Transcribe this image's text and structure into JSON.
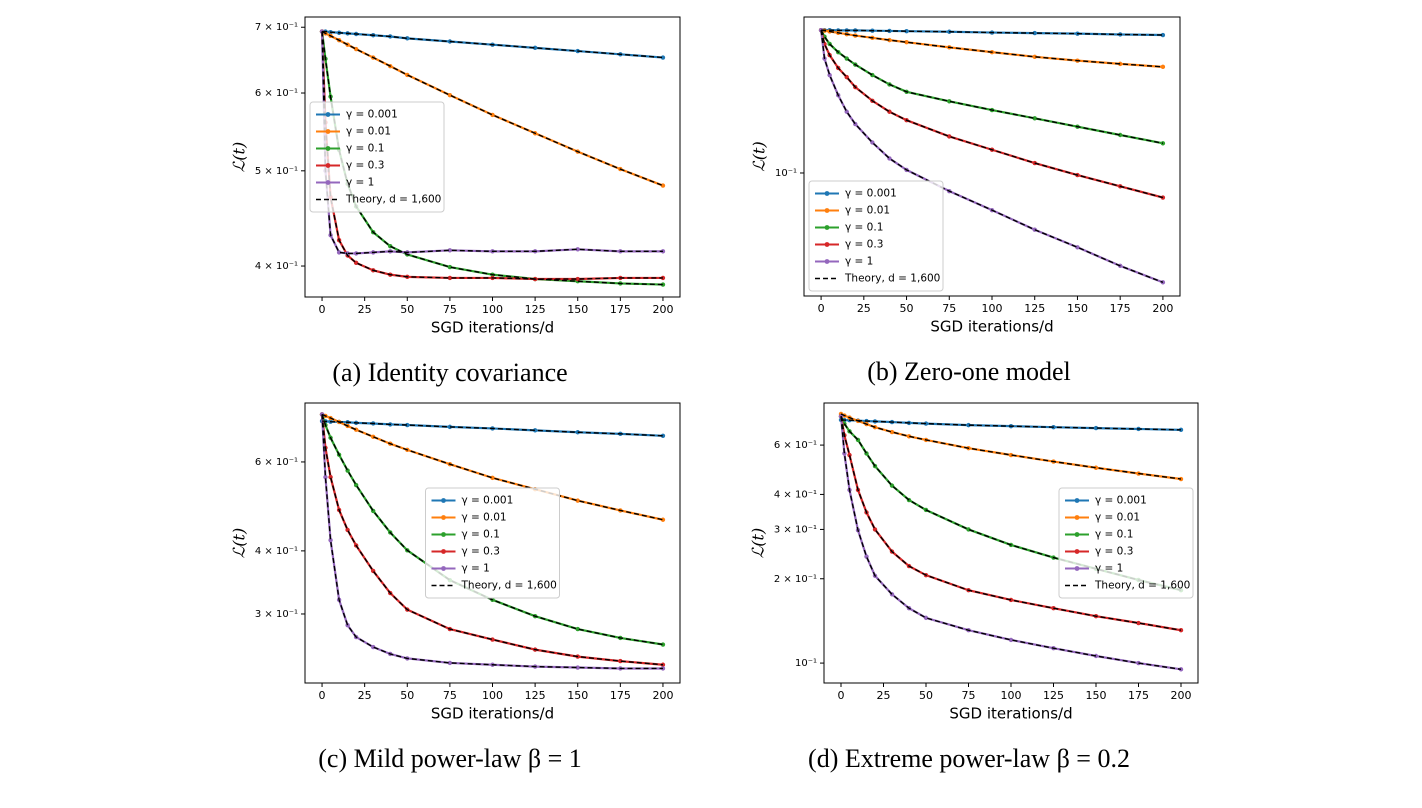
{
  "chart_data": [
    {
      "type": "line",
      "caption": "(a) Identity covariance",
      "x_label": "SGD iterations/d",
      "y_label": "ℒ(t)",
      "log_y": true,
      "legend_loc": "center left",
      "x": [
        0,
        2,
        5,
        10,
        15,
        20,
        30,
        40,
        50,
        75,
        100,
        125,
        150,
        175,
        200
      ],
      "xlim": [
        -10,
        210
      ],
      "xticks": [
        0,
        25,
        50,
        75,
        100,
        125,
        150,
        175,
        200
      ],
      "ylim": [
        0.372,
        0.717
      ],
      "yticks": [
        {
          "value": 0.4,
          "label": "4 × 10⁻¹"
        },
        {
          "value": 0.5,
          "label": "5 × 10⁻¹"
        },
        {
          "value": 0.6,
          "label": "6 × 10⁻¹"
        },
        {
          "value": 0.7,
          "label": "7 × 10⁻¹"
        }
      ],
      "series": [
        {
          "name": "γ = 0.001",
          "color": "#1f77b4",
          "values": [
            0.693,
            0.693,
            0.692,
            0.691,
            0.69,
            0.689,
            0.687,
            0.685,
            0.682,
            0.677,
            0.672,
            0.667,
            0.662,
            0.657,
            0.652
          ]
        },
        {
          "name": "γ = 0.01",
          "color": "#ff7f0e",
          "values": [
            0.693,
            0.69,
            0.686,
            0.679,
            0.672,
            0.665,
            0.652,
            0.639,
            0.626,
            0.597,
            0.57,
            0.546,
            0.523,
            0.502,
            0.483
          ]
        },
        {
          "name": "γ = 0.1",
          "color": "#2ca02c",
          "values": [
            0.693,
            0.65,
            0.595,
            0.525,
            0.485,
            0.46,
            0.433,
            0.419,
            0.411,
            0.399,
            0.392,
            0.388,
            0.386,
            0.384,
            0.383
          ]
        },
        {
          "name": "γ = 0.3",
          "color": "#d62728",
          "values": [
            0.693,
            0.56,
            0.47,
            0.425,
            0.41,
            0.403,
            0.396,
            0.392,
            0.39,
            0.389,
            0.389,
            0.388,
            0.388,
            0.389,
            0.389
          ]
        },
        {
          "name": "γ = 1",
          "color": "#9467bd",
          "values": [
            0.693,
            0.5,
            0.43,
            0.413,
            0.412,
            0.412,
            0.413,
            0.414,
            0.413,
            0.415,
            0.414,
            0.414,
            0.416,
            0.414,
            0.414
          ]
        }
      ],
      "theory": {
        "name": "Theory, d = 1,600",
        "color": "#000000",
        "dashed": true
      }
    },
    {
      "type": "line",
      "caption": "(b) Zero-one model",
      "x_label": "SGD iterations/d",
      "y_label": "ℒ(t)",
      "log_y": true,
      "legend_loc": "lower left",
      "x": [
        0,
        2,
        5,
        10,
        15,
        20,
        30,
        40,
        50,
        75,
        100,
        125,
        150,
        175,
        200
      ],
      "xlim": [
        -10,
        210
      ],
      "xticks": [
        0,
        25,
        50,
        75,
        100,
        125,
        150,
        175,
        200
      ],
      "ylim": [
        0.0307,
        0.447
      ],
      "yticks": [
        {
          "value": 0.1,
          "label": "10⁻¹"
        }
      ],
      "series": [
        {
          "name": "γ = 0.001",
          "color": "#1f77b4",
          "values": [
            0.394,
            0.394,
            0.394,
            0.393,
            0.393,
            0.393,
            0.392,
            0.391,
            0.39,
            0.388,
            0.385,
            0.383,
            0.381,
            0.378,
            0.376
          ]
        },
        {
          "name": "γ = 0.01",
          "color": "#ff7f0e",
          "values": [
            0.394,
            0.392,
            0.389,
            0.384,
            0.379,
            0.374,
            0.366,
            0.358,
            0.351,
            0.334,
            0.319,
            0.305,
            0.294,
            0.285,
            0.277
          ]
        },
        {
          "name": "γ = 0.1",
          "color": "#2ca02c",
          "values": [
            0.394,
            0.37,
            0.345,
            0.319,
            0.3,
            0.283,
            0.256,
            0.234,
            0.218,
            0.199,
            0.183,
            0.169,
            0.156,
            0.144,
            0.133
          ]
        },
        {
          "name": "γ = 0.3",
          "color": "#d62728",
          "values": [
            0.394,
            0.345,
            0.31,
            0.274,
            0.251,
            0.228,
            0.2,
            0.18,
            0.166,
            0.142,
            0.125,
            0.11,
            0.098,
            0.088,
            0.079
          ]
        },
        {
          "name": "γ = 1",
          "color": "#9467bd",
          "values": [
            0.394,
            0.3,
            0.256,
            0.211,
            0.18,
            0.16,
            0.134,
            0.115,
            0.103,
            0.084,
            0.07,
            0.058,
            0.049,
            0.041,
            0.035
          ]
        }
      ],
      "theory": {
        "name": "Theory, d = 1,600",
        "color": "#000000",
        "dashed": true
      }
    },
    {
      "type": "line",
      "caption": "(c) Mild power-law β = 1",
      "x_label": "SGD iterations/d",
      "y_label": "ℒ(t)",
      "log_y": true,
      "legend_loc": "center",
      "x": [
        0,
        2,
        5,
        10,
        15,
        20,
        30,
        40,
        50,
        75,
        100,
        125,
        150,
        175,
        200
      ],
      "xlim": [
        -10,
        210
      ],
      "xticks": [
        0,
        25,
        50,
        75,
        100,
        125,
        150,
        175,
        200
      ],
      "ylim": [
        0.219,
        0.785
      ],
      "yticks": [
        {
          "value": 0.3,
          "label": "3 × 10⁻¹"
        },
        {
          "value": 0.4,
          "label": "4 × 10⁻¹"
        },
        {
          "value": 0.6,
          "label": "6 × 10⁻¹"
        }
      ],
      "series": [
        {
          "name": "γ = 0.001",
          "color": "#1f77b4",
          "values": [
            0.723,
            0.722,
            0.721,
            0.72,
            0.719,
            0.717,
            0.715,
            0.712,
            0.71,
            0.704,
            0.699,
            0.693,
            0.687,
            0.682,
            0.676
          ]
        },
        {
          "name": "γ = 0.01",
          "color": "#ff7f0e",
          "values": [
            0.745,
            0.74,
            0.733,
            0.72,
            0.707,
            0.695,
            0.673,
            0.652,
            0.634,
            0.594,
            0.558,
            0.53,
            0.503,
            0.481,
            0.461
          ]
        },
        {
          "name": "γ = 0.1",
          "color": "#2ca02c",
          "values": [
            0.745,
            0.71,
            0.67,
            0.62,
            0.577,
            0.54,
            0.48,
            0.435,
            0.401,
            0.35,
            0.32,
            0.297,
            0.28,
            0.269,
            0.261
          ]
        },
        {
          "name": "γ = 0.3",
          "color": "#d62728",
          "values": [
            0.745,
            0.64,
            0.56,
            0.482,
            0.44,
            0.41,
            0.365,
            0.33,
            0.306,
            0.28,
            0.267,
            0.255,
            0.247,
            0.242,
            0.238
          ]
        },
        {
          "name": "γ = 1",
          "color": "#9467bd",
          "values": [
            0.745,
            0.56,
            0.42,
            0.32,
            0.285,
            0.27,
            0.258,
            0.25,
            0.245,
            0.24,
            0.238,
            0.236,
            0.235,
            0.234,
            0.234
          ]
        }
      ],
      "theory": {
        "name": "Theory, d = 1,600",
        "color": "#000000",
        "dashed": true
      }
    },
    {
      "type": "line",
      "caption": "(d) Extreme power-law β = 0.2",
      "x_label": "SGD iterations/d",
      "y_label": "ℒ(t)",
      "log_y": true,
      "legend_loc": "center right",
      "x": [
        0,
        2,
        5,
        10,
        15,
        20,
        30,
        40,
        50,
        75,
        100,
        125,
        150,
        175,
        200
      ],
      "xlim": [
        -10,
        210
      ],
      "xticks": [
        0,
        25,
        50,
        75,
        100,
        125,
        150,
        175,
        200
      ],
      "ylim": [
        0.0849,
        0.848
      ],
      "yticks": [
        {
          "value": 0.1,
          "label": "10⁻¹"
        },
        {
          "value": 0.2,
          "label": "2 × 10⁻¹"
        },
        {
          "value": 0.3,
          "label": "3 × 10⁻¹"
        },
        {
          "value": 0.4,
          "label": "4 × 10⁻¹"
        },
        {
          "value": 0.6,
          "label": "6 × 10⁻¹"
        }
      ],
      "series": [
        {
          "name": "γ = 0.001",
          "color": "#1f77b4",
          "values": [
            0.738,
            0.737,
            0.736,
            0.734,
            0.731,
            0.729,
            0.725,
            0.72,
            0.716,
            0.707,
            0.701,
            0.695,
            0.69,
            0.685,
            0.68
          ]
        },
        {
          "name": "γ = 0.01",
          "color": "#ff7f0e",
          "values": [
            0.775,
            0.765,
            0.752,
            0.732,
            0.713,
            0.695,
            0.668,
            0.645,
            0.626,
            0.585,
            0.553,
            0.524,
            0.498,
            0.475,
            0.454
          ]
        },
        {
          "name": "γ = 0.1",
          "color": "#2ca02c",
          "values": [
            0.76,
            0.715,
            0.672,
            0.626,
            0.56,
            0.505,
            0.43,
            0.382,
            0.352,
            0.3,
            0.264,
            0.238,
            0.217,
            0.198,
            0.182
          ]
        },
        {
          "name": "γ = 0.3",
          "color": "#d62728",
          "values": [
            0.76,
            0.65,
            0.553,
            0.415,
            0.345,
            0.3,
            0.25,
            0.222,
            0.206,
            0.182,
            0.168,
            0.157,
            0.147,
            0.139,
            0.131
          ]
        },
        {
          "name": "γ = 1",
          "color": "#9467bd",
          "values": [
            0.76,
            0.56,
            0.415,
            0.298,
            0.24,
            0.205,
            0.176,
            0.157,
            0.145,
            0.131,
            0.121,
            0.113,
            0.106,
            0.1,
            0.095
          ]
        }
      ],
      "theory": {
        "name": "Theory, d = 1,600",
        "color": "#000000",
        "dashed": true
      }
    }
  ]
}
